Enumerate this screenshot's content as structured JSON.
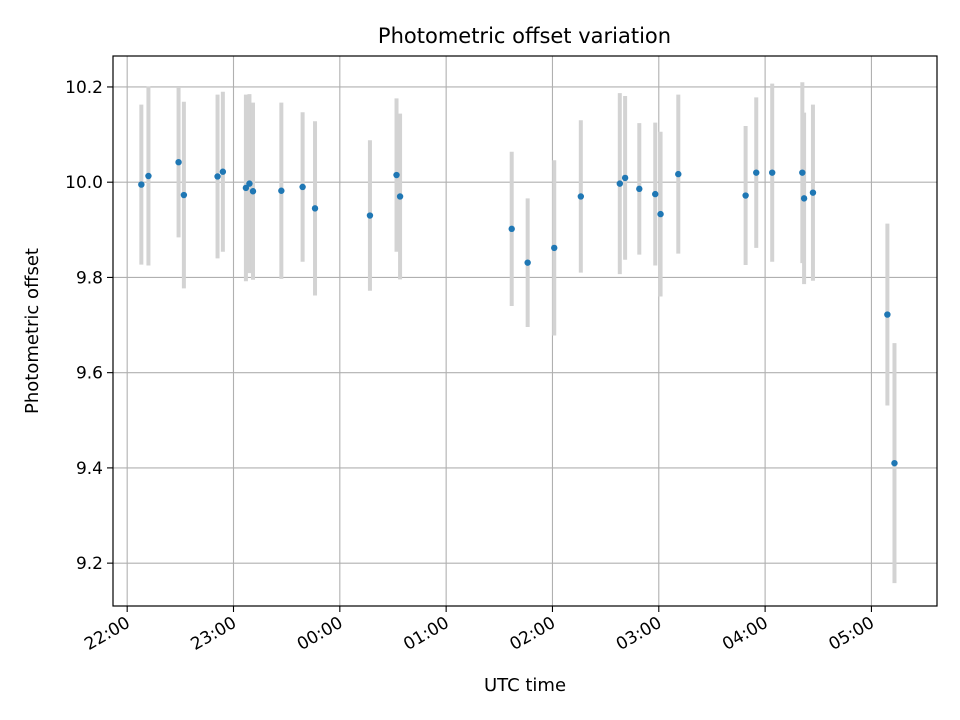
{
  "chart_data": {
    "type": "scatter",
    "title": "Photometric offset variation",
    "xlabel": "UTC time",
    "ylabel": "Photometric offset",
    "x_is_time": true,
    "xlim": [
      "21:52",
      "05:37"
    ],
    "ylim": [
      9.11,
      10.265
    ],
    "xticks": [
      "22:00",
      "23:00",
      "00:00",
      "01:00",
      "02:00",
      "03:00",
      "04:00",
      "05:00"
    ],
    "yticks": [
      "9.2",
      "9.4",
      "9.6",
      "9.8",
      "10.0",
      "10.2"
    ],
    "grid": true,
    "marker_color": "#1f77b4",
    "errorbar_color": "#d3d3d3",
    "series": [
      {
        "points": [
          {
            "t": "22:08",
            "y": 9.995,
            "err": 0.168
          },
          {
            "t": "22:12",
            "y": 10.013,
            "err": 0.188
          },
          {
            "t": "22:29",
            "y": 10.042,
            "err": 0.158
          },
          {
            "t": "22:32",
            "y": 9.973,
            "err": 0.196
          },
          {
            "t": "22:51",
            "y": 10.012,
            "err": 0.172
          },
          {
            "t": "22:54",
            "y": 10.022,
            "err": 0.168
          },
          {
            "t": "23:07",
            "y": 9.988,
            "err": 0.196
          },
          {
            "t": "23:09",
            "y": 9.997,
            "err": 0.188
          },
          {
            "t": "23:11",
            "y": 9.981,
            "err": 0.186
          },
          {
            "t": "23:27",
            "y": 9.982,
            "err": 0.185
          },
          {
            "t": "23:39",
            "y": 9.99,
            "err": 0.157
          },
          {
            "t": "23:46",
            "y": 9.945,
            "err": 0.183
          },
          {
            "t": "00:17",
            "y": 9.93,
            "err": 0.158
          },
          {
            "t": "00:32",
            "y": 10.015,
            "err": 0.161
          },
          {
            "t": "00:34",
            "y": 9.97,
            "err": 0.174
          },
          {
            "t": "01:37",
            "y": 9.902,
            "err": 0.162
          },
          {
            "t": "01:46",
            "y": 9.831,
            "err": 0.135
          },
          {
            "t": "02:01",
            "y": 9.862,
            "err": 0.184
          },
          {
            "t": "02:16",
            "y": 9.97,
            "err": 0.16
          },
          {
            "t": "02:38",
            "y": 9.997,
            "err": 0.19
          },
          {
            "t": "02:41",
            "y": 10.009,
            "err": 0.172
          },
          {
            "t": "02:49",
            "y": 9.986,
            "err": 0.138
          },
          {
            "t": "02:58",
            "y": 9.975,
            "err": 0.15
          },
          {
            "t": "03:01",
            "y": 9.933,
            "err": 0.173
          },
          {
            "t": "03:11",
            "y": 10.017,
            "err": 0.167
          },
          {
            "t": "03:49",
            "y": 9.972,
            "err": 0.146
          },
          {
            "t": "03:55",
            "y": 10.02,
            "err": 0.158
          },
          {
            "t": "04:04",
            "y": 10.02,
            "err": 0.187
          },
          {
            "t": "04:21",
            "y": 10.02,
            "err": 0.19
          },
          {
            "t": "04:22",
            "y": 9.966,
            "err": 0.18
          },
          {
            "t": "04:27",
            "y": 9.978,
            "err": 0.185
          },
          {
            "t": "05:09",
            "y": 9.722,
            "err": 0.191
          },
          {
            "t": "05:13",
            "y": 9.41,
            "err": 0.252
          }
        ]
      }
    ]
  }
}
